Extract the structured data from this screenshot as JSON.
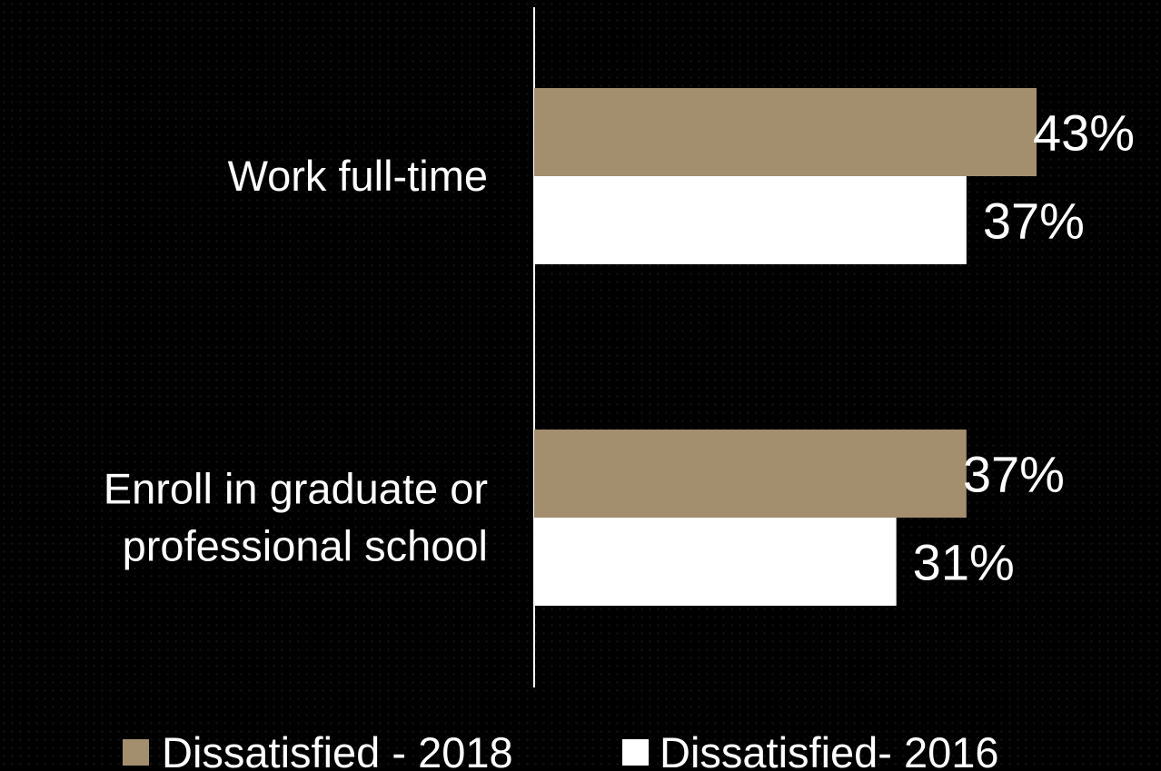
{
  "chart_data": {
    "type": "bar",
    "orientation": "horizontal",
    "categories": [
      [
        "Work full-time"
      ],
      [
        "Enroll in graduate or",
        "professional school"
      ]
    ],
    "series": [
      {
        "name": "Dissatisfied - 2018",
        "color": "#a38e6e",
        "values": [
          43,
          37
        ],
        "labels": [
          "43%",
          "37%"
        ]
      },
      {
        "name": "Dissatisfied- 2016",
        "color": "#ffffff",
        "values": [
          37,
          31
        ],
        "labels": [
          "37%",
          "31%"
        ]
      }
    ],
    "unit": "%",
    "xlim": [
      0,
      50
    ],
    "grid": false,
    "legend_position": "bottom",
    "title": "",
    "xlabel": "",
    "ylabel": ""
  }
}
